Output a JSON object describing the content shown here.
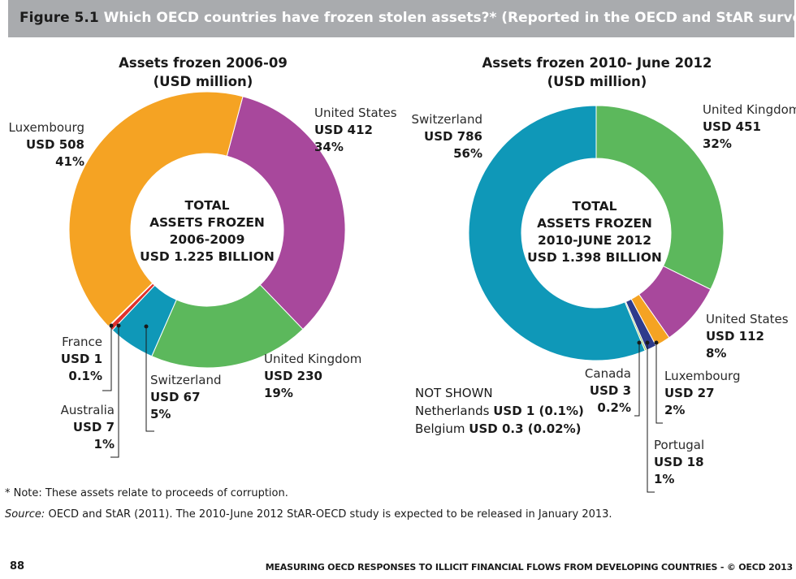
{
  "figure": {
    "number": "Figure 5.1",
    "title": "Which OECD countries have frozen stolen assets?* (Reported in the OECD and StAR surveys)"
  },
  "chart_data": [
    {
      "type": "pie",
      "title": "Assets frozen 2006-09",
      "subtitle": "(USD million)",
      "center_text": [
        "TOTAL",
        "ASSETS FROZEN",
        "2006-2009",
        "USD 1.225 BILLION"
      ],
      "slices": [
        {
          "name": "United States",
          "value_label": "USD 412",
          "value": 412,
          "percent": "34%",
          "color": "#a8489c"
        },
        {
          "name": "United Kingdom",
          "value_label": "USD 230",
          "value": 230,
          "percent": "19%",
          "color": "#5cb85c"
        },
        {
          "name": "Switzerland",
          "value_label": "USD 67",
          "value": 67,
          "percent": "5%",
          "color": "#0f98b8"
        },
        {
          "name": "Australia",
          "value_label": "USD 7",
          "value": 7,
          "percent": "1%",
          "color": "#e0312c"
        },
        {
          "name": "France",
          "value_label": "USD 1",
          "value": 1,
          "percent": "0.1%",
          "color": "#f39c4a"
        },
        {
          "name": "Luxembourg",
          "value_label": "USD 508",
          "value": 508,
          "percent": "41%",
          "color": "#f5a323"
        }
      ]
    },
    {
      "type": "pie",
      "title": "Assets frozen 2010- June 2012",
      "subtitle": "(USD million)",
      "center_text": [
        "TOTAL",
        "ASSETS FROZEN",
        "2010-JUNE 2012",
        "USD 1.398 BILLION"
      ],
      "slices": [
        {
          "name": "United Kingdom",
          "value_label": "USD 451",
          "value": 451,
          "percent": "32%",
          "color": "#5cb85c"
        },
        {
          "name": "United States",
          "value_label": "USD 112",
          "value": 112,
          "percent": "8%",
          "color": "#a8489c"
        },
        {
          "name": "Luxembourg",
          "value_label": "USD 27",
          "value": 27,
          "percent": "2%",
          "color": "#f5a323"
        },
        {
          "name": "Portugal",
          "value_label": "USD 18",
          "value": 18,
          "percent": "1%",
          "color": "#2e3b8c"
        },
        {
          "name": "Canada",
          "value_label": "USD 3",
          "value": 3,
          "percent": "0.2%",
          "color": "#8bc34a"
        },
        {
          "name": "Switzerland",
          "value_label": "USD 786",
          "value": 786,
          "percent": "56%",
          "color": "#0f98b8"
        }
      ],
      "not_shown": {
        "heading": "NOT SHOWN",
        "items": [
          {
            "name": "Netherlands",
            "value": "USD 1 (0.1%)"
          },
          {
            "name": "Belgium",
            "value": "USD 0.3 (0.02%)"
          }
        ]
      }
    }
  ],
  "notes": {
    "note": "* Note: These assets relate to proceeds of corruption.",
    "source_label": "Source:",
    "source_text": " OECD and StAR (2011). The 2010-June 2012 StAR-OECD study is expected to be released in January 2013."
  },
  "footer": {
    "page_number": "88",
    "running_title": "MEASURING OECD RESPONSES TO ILLICIT FINANCIAL FLOWS FROM DEVELOPING COUNTRIES - © OECD 2013"
  }
}
